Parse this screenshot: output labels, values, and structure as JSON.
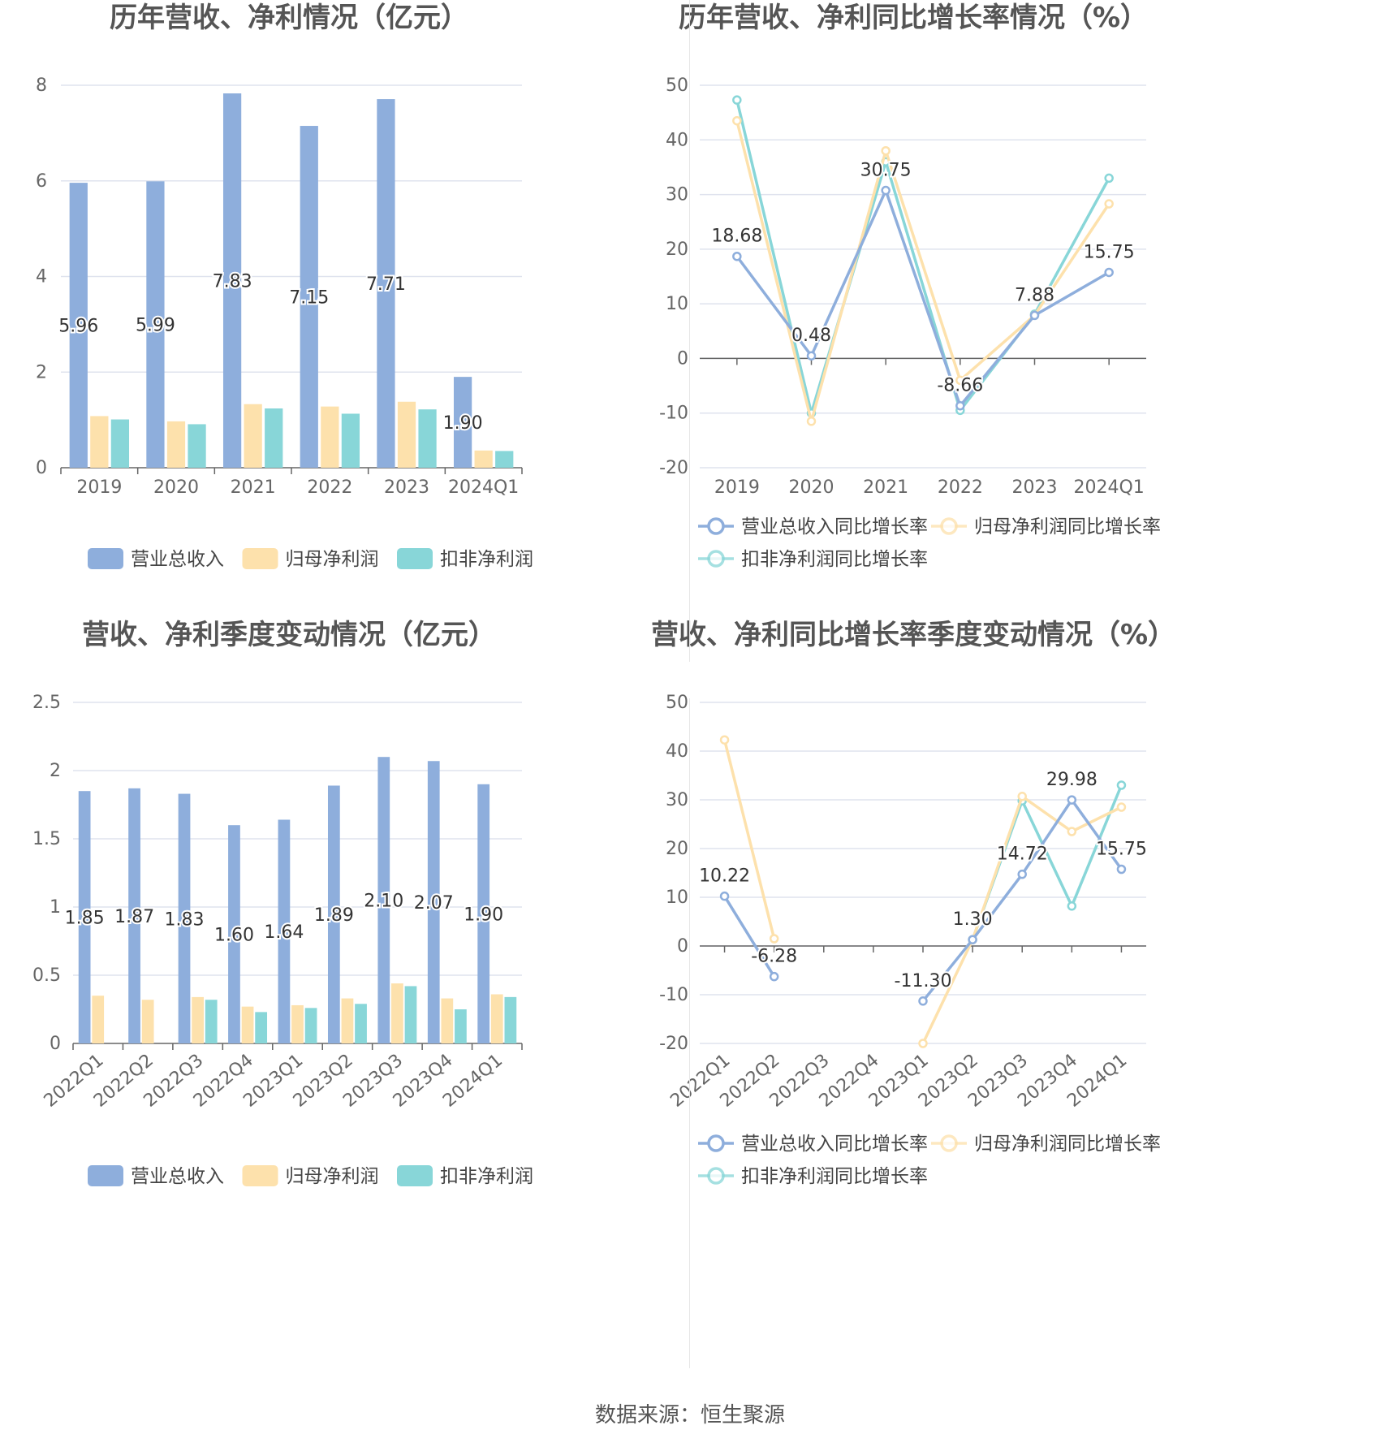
{
  "colors": {
    "revenue": "#8eaedc",
    "net_profit": "#fde1ac",
    "deducted_profit": "#88d6d8",
    "grid": "#dfe3ee",
    "axis": "#666666"
  },
  "source": {
    "text": "数据来源：恒生聚源"
  },
  "chart_data": [
    {
      "id": "annual_amounts",
      "type": "bar",
      "title": "历年营收、净利情况（亿元）",
      "categories": [
        "2019",
        "2020",
        "2021",
        "2022",
        "2023",
        "2024Q1"
      ],
      "ylim": [
        0,
        8
      ],
      "yticks": [
        0,
        2,
        4,
        6,
        8
      ],
      "grid": true,
      "legend_position": "bottom",
      "series": [
        {
          "name": "营业总收入",
          "color_key": "revenue",
          "values": [
            5.96,
            5.99,
            7.83,
            7.15,
            7.71,
            1.9
          ],
          "labels": [
            "5.96",
            "5.99",
            "7.83",
            "7.15",
            "7.71",
            "1.90"
          ]
        },
        {
          "name": "归母净利润",
          "color_key": "net_profit",
          "values": [
            1.08,
            0.97,
            1.33,
            1.28,
            1.38,
            0.36
          ]
        },
        {
          "name": "扣非净利润",
          "color_key": "deducted_profit",
          "values": [
            1.01,
            0.91,
            1.24,
            1.13,
            1.22,
            0.35
          ]
        }
      ]
    },
    {
      "id": "annual_growth",
      "type": "line",
      "title": "历年营收、净利同比增长率情况（%）",
      "categories": [
        "2019",
        "2020",
        "2021",
        "2022",
        "2023",
        "2024Q1"
      ],
      "ylim": [
        -20,
        50
      ],
      "yticks": [
        -20,
        -10,
        0,
        10,
        20,
        30,
        40,
        50
      ],
      "grid": true,
      "legend_position": "bottom",
      "series": [
        {
          "name": "营业总收入同比增长率",
          "color_key": "revenue",
          "values": [
            18.68,
            0.48,
            30.75,
            -8.66,
            7.88,
            15.75
          ],
          "labels": [
            "18.68",
            "0.48",
            "30.75",
            "-8.66",
            "7.88",
            "15.75"
          ]
        },
        {
          "name": "归母净利润同比增长率",
          "color_key": "net_profit",
          "values": [
            43.5,
            -11.5,
            38.0,
            -4.0,
            7.9,
            28.3
          ]
        },
        {
          "name": "扣非净利润同比增长率",
          "color_key": "deducted_profit",
          "values": [
            47.3,
            -10.0,
            36.0,
            -9.5,
            8.1,
            33.0
          ]
        }
      ]
    },
    {
      "id": "quarterly_amounts",
      "type": "bar",
      "title": "营收、净利季度变动情况（亿元）",
      "categories": [
        "2022Q1",
        "2022Q2",
        "2022Q3",
        "2022Q4",
        "2023Q1",
        "2023Q2",
        "2023Q3",
        "2023Q4",
        "2024Q1"
      ],
      "ylim": [
        0,
        2.5
      ],
      "yticks": [
        0,
        0.5,
        1,
        1.5,
        2,
        2.5
      ],
      "ytick_labels": [
        "0",
        "0.5",
        "1",
        "1.5",
        "2",
        "2.5"
      ],
      "grid": true,
      "legend_position": "bottom",
      "series": [
        {
          "name": "营业总收入",
          "color_key": "revenue",
          "values": [
            1.85,
            1.87,
            1.83,
            1.6,
            1.64,
            1.89,
            2.1,
            2.07,
            1.9
          ],
          "labels": [
            "1.85",
            "1.87",
            "1.83",
            "1.60",
            "1.64",
            "1.89",
            "2.10",
            "2.07",
            "1.90"
          ]
        },
        {
          "name": "归母净利润",
          "color_key": "net_profit",
          "values": [
            0.35,
            0.32,
            0.34,
            0.27,
            0.28,
            0.33,
            0.44,
            0.33,
            0.36
          ]
        },
        {
          "name": "扣非净利润",
          "color_key": "deducted_profit",
          "values": [
            null,
            null,
            0.32,
            0.23,
            0.26,
            0.29,
            0.42,
            0.25,
            0.34
          ]
        }
      ]
    },
    {
      "id": "quarterly_growth",
      "type": "line",
      "title": "营收、净利同比增长率季度变动情况（%）",
      "categories": [
        "2022Q1",
        "2022Q2",
        "2022Q3",
        "2022Q4",
        "2023Q1",
        "2023Q2",
        "2023Q3",
        "2023Q4",
        "2024Q1"
      ],
      "ylim": [
        -20,
        50
      ],
      "yticks": [
        -20,
        -10,
        0,
        10,
        20,
        30,
        40,
        50
      ],
      "grid": true,
      "legend_position": "bottom",
      "series": [
        {
          "name": "营业总收入同比增长率",
          "color_key": "revenue",
          "values": [
            10.22,
            -6.28,
            null,
            null,
            -11.3,
            1.3,
            14.72,
            29.98,
            15.75
          ],
          "labels": [
            "10.22",
            "-6.28",
            null,
            null,
            "-11.30",
            "1.30",
            "14.72",
            "29.98",
            "15.75"
          ]
        },
        {
          "name": "归母净利润同比增长率",
          "color_key": "net_profit",
          "values": [
            42.3,
            1.5,
            null,
            null,
            -20.0,
            1.3,
            30.7,
            23.5,
            28.5
          ]
        },
        {
          "name": "扣非净利润同比增长率",
          "color_key": "deducted_profit",
          "values": [
            null,
            null,
            null,
            null,
            null,
            1.3,
            29.8,
            8.2,
            33.0
          ]
        }
      ]
    }
  ]
}
